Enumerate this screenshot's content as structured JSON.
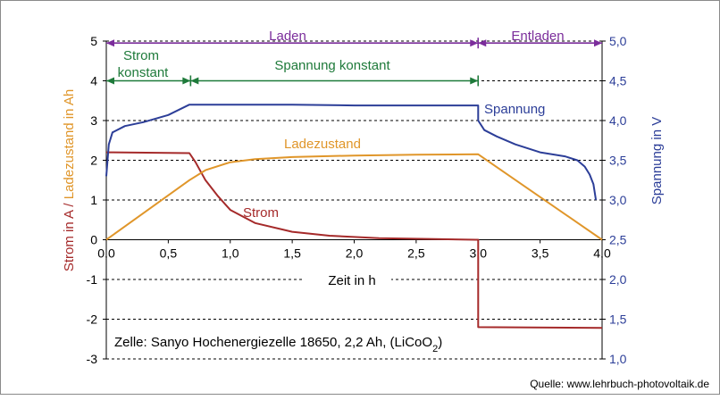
{
  "chart_data": {
    "type": "line",
    "xlabel": "Zeit  in h",
    "ylabel_left": "Strom in A / Ladezustand  in Ah",
    "ylabel_left_parts": [
      "Strom in A",
      " / ",
      "Ladezustand  in Ah"
    ],
    "ylabel_right": "Spannung  in V",
    "xlim": [
      0,
      4
    ],
    "ylim_left": [
      -3,
      5
    ],
    "ylim_right": [
      1.0,
      5.0
    ],
    "x_ticks": [
      "0,0",
      "0,5",
      "1,0",
      "1,5",
      "2,0",
      "2,5",
      "3,0",
      "3,5",
      "4,0"
    ],
    "y_left_ticks": [
      "-3",
      "-2",
      "-1",
      "0",
      "1",
      "2",
      "3",
      "4",
      "5"
    ],
    "y_right_ticks": [
      "1,0",
      "1,5",
      "2,0",
      "2,5",
      "3,0",
      "3,5",
      "4,0",
      "4,5",
      "5,0"
    ],
    "grid": "horizontal dashed",
    "series": [
      {
        "name": "Strom",
        "axis": "left",
        "color": "#a52a2a",
        "x": [
          0,
          0.67,
          0.72,
          0.8,
          0.9,
          1.0,
          1.2,
          1.5,
          1.8,
          2.2,
          2.6,
          2.98,
          3.0,
          3.0,
          4.0
        ],
        "y": [
          2.2,
          2.18,
          1.95,
          1.5,
          1.1,
          0.75,
          0.42,
          0.2,
          0.1,
          0.04,
          0.02,
          0.0,
          0.0,
          -2.2,
          -2.22
        ]
      },
      {
        "name": "Ladezustand",
        "axis": "left",
        "color": "#e0962a",
        "x": [
          0,
          0.67,
          0.8,
          1.0,
          1.2,
          1.5,
          2.0,
          2.5,
          3.0,
          4.0
        ],
        "y": [
          0,
          1.5,
          1.75,
          1.95,
          2.03,
          2.08,
          2.12,
          2.14,
          2.15,
          0
        ]
      },
      {
        "name": "Spannung",
        "axis": "right",
        "color": "#2c3e98",
        "x": [
          0,
          0.02,
          0.05,
          0.15,
          0.3,
          0.5,
          0.67,
          0.7,
          1.5,
          2.0,
          2.5,
          3.0,
          3.0,
          3.05,
          3.15,
          3.3,
          3.5,
          3.7,
          3.8,
          3.86,
          3.9,
          3.93,
          3.95
        ],
        "y": [
          3.3,
          3.7,
          3.85,
          3.93,
          3.98,
          4.07,
          4.2,
          4.2,
          4.2,
          4.19,
          4.19,
          4.19,
          4.0,
          3.88,
          3.8,
          3.7,
          3.6,
          3.55,
          3.5,
          3.42,
          3.32,
          3.2,
          3.0
        ]
      }
    ],
    "annotations": {
      "phase_laden": "Laden",
      "phase_entladen": "Entladen",
      "strom_konstant_line1": "Strom",
      "strom_konstant_line2": "konstant",
      "spannung_konstant": "Spannung  konstant",
      "label_spannung": "Spannung",
      "label_ladezustand": "Ladezustand",
      "label_strom": "Strom",
      "cell_info_prefix": "Zelle:  Sanyo Hochenergiezelle  18650, 2,2 Ah, (LiCoO",
      "cell_info_sub": "2",
      "cell_info_suffix": ")"
    },
    "colors": {
      "strom_axis": "#a52a2a",
      "ladezustand_axis": "#e0962a",
      "spannung_axis": "#2c3e98",
      "laden_arrow": "#7b2d9b",
      "konstant_arrow": "#1e7a3a",
      "grid": "#000000"
    }
  },
  "footer": {
    "source": "Quelle: www.lehrbuch-photovoltaik.de"
  }
}
